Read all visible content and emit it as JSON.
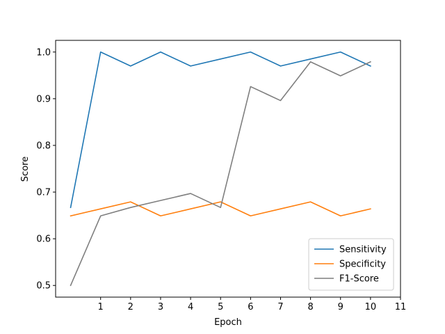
{
  "chart_data": {
    "type": "line",
    "xlabel": "Epoch",
    "ylabel": "Score",
    "xlim": [
      -0.5,
      11
    ],
    "ylim": [
      0.475,
      1.025
    ],
    "x_ticks": [
      1,
      2,
      3,
      4,
      5,
      6,
      7,
      8,
      9,
      10,
      11
    ],
    "y_ticks": [
      0.5,
      0.6,
      0.7,
      0.8,
      0.9,
      1.0
    ],
    "y_tick_labels": [
      "0.5",
      "0.6",
      "0.7",
      "0.8",
      "0.9",
      "1.0"
    ],
    "grid": false,
    "legend_position": "lower-right",
    "x": [
      0,
      1,
      2,
      3,
      4,
      5,
      6,
      7,
      8,
      9,
      10
    ],
    "series": [
      {
        "name": "Sensitivity",
        "color": "#1f77b4",
        "values": [
          0.667,
          1.0,
          0.97,
          1.0,
          0.97,
          0.985,
          1.0,
          0.97,
          0.985,
          1.0,
          0.97
        ]
      },
      {
        "name": "Specificity",
        "color": "#ff7f0e",
        "values": [
          0.649,
          0.664,
          0.679,
          0.649,
          0.664,
          0.679,
          0.649,
          0.664,
          0.679,
          0.649,
          0.664
        ]
      },
      {
        "name": "F1-Score",
        "color": "#7f7f7f",
        "values": [
          0.5,
          0.649,
          0.667,
          0.682,
          0.697,
          0.667,
          0.926,
          0.896,
          0.979,
          0.949,
          0.979
        ]
      }
    ]
  }
}
